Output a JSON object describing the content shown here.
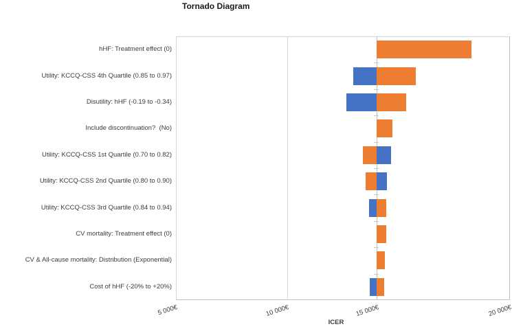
{
  "chart_data": {
    "type": "bar",
    "subtype": "tornado",
    "orientation": "horizontal",
    "title": "Tornado Diagram",
    "xlabel": "ICER",
    "xlim": [
      5000,
      20000
    ],
    "x_ticks": [
      {
        "value": 5000,
        "label": "5 000€"
      },
      {
        "value": 10000,
        "label": "10 000€"
      },
      {
        "value": 15000,
        "label": "15 000€"
      },
      {
        "value": 20000,
        "label": "20 000€"
      }
    ],
    "gridline_values": [
      10000
    ],
    "base_case_icer": 14000,
    "legend": "none",
    "colors": {
      "blue": "#4472C4",
      "orange": "#ED7D31"
    },
    "bars": [
      {
        "label": "hHF: Treatment effect (0)",
        "segments": [
          {
            "from": 14000,
            "to": 18270,
            "color": "orange"
          }
        ]
      },
      {
        "label": "Utility: KCCQ-CSS 4th Quartile (0.85 to 0.97)",
        "segments": [
          {
            "from": 12950,
            "to": 14000,
            "color": "blue"
          },
          {
            "from": 14000,
            "to": 15780,
            "color": "orange"
          }
        ]
      },
      {
        "label": "Disutility: hHF (-0.19 to -0.34)",
        "segments": [
          {
            "from": 12660,
            "to": 14000,
            "color": "blue"
          },
          {
            "from": 14000,
            "to": 15340,
            "color": "orange"
          }
        ]
      },
      {
        "label": "Include discontinuation?  (No)",
        "segments": [
          {
            "from": 14000,
            "to": 14730,
            "color": "orange"
          }
        ]
      },
      {
        "label": "Utility: KCCQ-CSS 1st Quartile (0.70 to 0.82)",
        "segments": [
          {
            "from": 13390,
            "to": 14000,
            "color": "orange"
          },
          {
            "from": 14000,
            "to": 14650,
            "color": "blue"
          }
        ]
      },
      {
        "label": "Utility: KCCQ-CSS 2nd Quartile (0.80 to 0.90)",
        "segments": [
          {
            "from": 13520,
            "to": 14000,
            "color": "orange"
          },
          {
            "from": 14000,
            "to": 14470,
            "color": "blue"
          }
        ]
      },
      {
        "label": "Utility: KCCQ-CSS 3rd Quartile (0.84 to 0.94)",
        "segments": [
          {
            "from": 13670,
            "to": 14000,
            "color": "blue"
          },
          {
            "from": 14000,
            "to": 14430,
            "color": "orange"
          }
        ]
      },
      {
        "label": "CV mortality: Treatment effect (0)",
        "segments": [
          {
            "from": 14000,
            "to": 14460,
            "color": "orange"
          }
        ]
      },
      {
        "label": "CV & All-cause mortality: Distribution (Exponential)",
        "segments": [
          {
            "from": 14000,
            "to": 14370,
            "color": "orange"
          }
        ]
      },
      {
        "label": "Cost of hHF (-20% to +20%)",
        "segments": [
          {
            "from": 13710,
            "to": 14000,
            "color": "blue"
          },
          {
            "from": 14000,
            "to": 14350,
            "color": "orange"
          }
        ]
      }
    ]
  }
}
